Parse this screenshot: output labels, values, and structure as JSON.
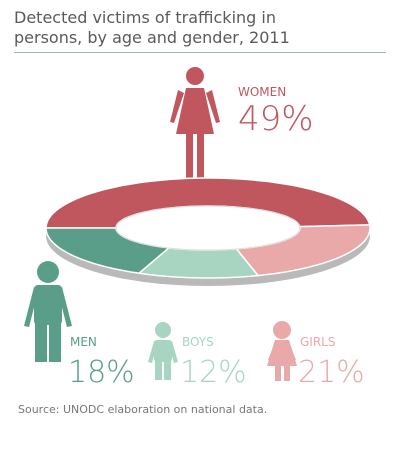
{
  "chart_data": {
    "type": "donut",
    "title": "Detected victims of trafficking in persons, by age and gender, 2011",
    "categories": [
      "WOMEN",
      "MEN",
      "BOYS",
      "GIRLS"
    ],
    "values": [
      49,
      18,
      12,
      21
    ],
    "value_labels": [
      "49%",
      "18%",
      "12%",
      "21%"
    ],
    "colors": [
      "#c0575f",
      "#5a9e8a",
      "#a8d5c2",
      "#e8a9a8"
    ],
    "source": "Source: UNODC elaboration on national data."
  }
}
